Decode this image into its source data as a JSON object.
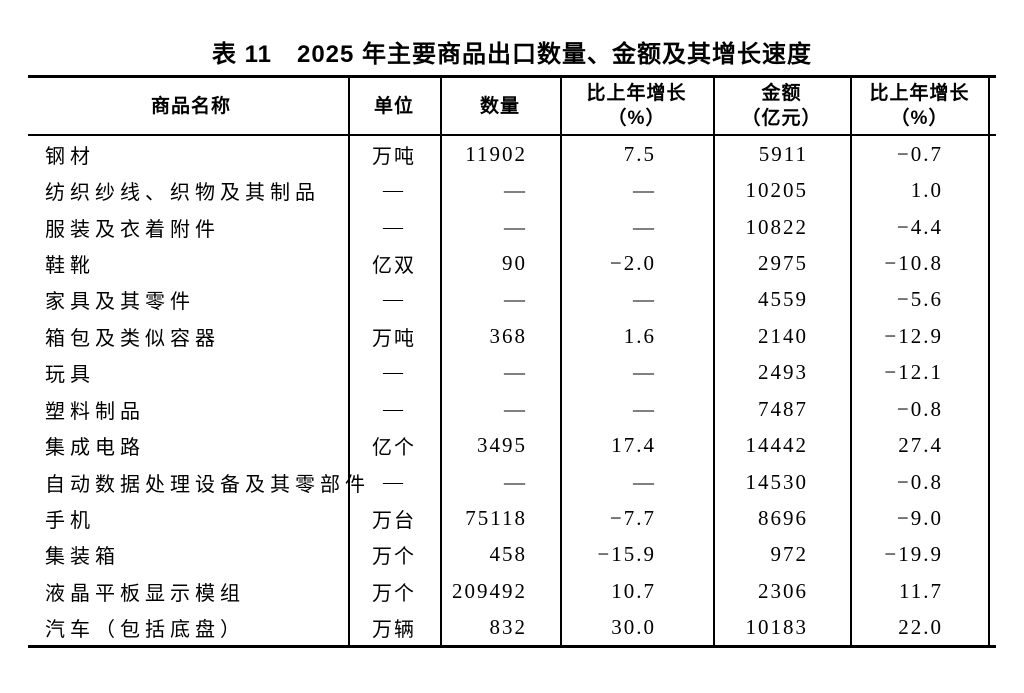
{
  "title": "表 11　2025 年主要商品出口数量、金额及其增长速度",
  "table": {
    "headers": {
      "name": "商品名称",
      "unit": "单位",
      "quantity": "数量",
      "qty_growth_line1": "比上年增长",
      "qty_growth_line2": "（%）",
      "value_line1": "金额",
      "value_line2": "（亿元）",
      "val_growth_line1": "比上年增长",
      "val_growth_line2": "（%）"
    },
    "empty_marker": "—",
    "rows": [
      {
        "name": "钢材",
        "unit": "万吨",
        "qty": "11902",
        "qty_growth": "7.5",
        "value": "5911",
        "val_growth": "−0.7"
      },
      {
        "name": "纺织纱线、织物及其制品",
        "unit": "—",
        "qty": "—",
        "qty_growth": "—",
        "value": "10205",
        "val_growth": "1.0"
      },
      {
        "name": "服装及衣着附件",
        "unit": "—",
        "qty": "—",
        "qty_growth": "—",
        "value": "10822",
        "val_growth": "−4.4"
      },
      {
        "name": "鞋靴",
        "unit": "亿双",
        "qty": "90",
        "qty_growth": "−2.0",
        "value": "2975",
        "val_growth": "−10.8"
      },
      {
        "name": "家具及其零件",
        "unit": "—",
        "qty": "—",
        "qty_growth": "—",
        "value": "4559",
        "val_growth": "−5.6"
      },
      {
        "name": "箱包及类似容器",
        "unit": "万吨",
        "qty": "368",
        "qty_growth": "1.6",
        "value": "2140",
        "val_growth": "−12.9"
      },
      {
        "name": "玩具",
        "unit": "—",
        "qty": "—",
        "qty_growth": "—",
        "value": "2493",
        "val_growth": "−12.1"
      },
      {
        "name": "塑料制品",
        "unit": "—",
        "qty": "—",
        "qty_growth": "—",
        "value": "7487",
        "val_growth": "−0.8"
      },
      {
        "name": "集成电路",
        "unit": "亿个",
        "qty": "3495",
        "qty_growth": "17.4",
        "value": "14442",
        "val_growth": "27.4"
      },
      {
        "name": "自动数据处理设备及其零部件",
        "unit": "—",
        "qty": "—",
        "qty_growth": "—",
        "value": "14530",
        "val_growth": "−0.8"
      },
      {
        "name": "手机",
        "unit": "万台",
        "qty": "75118",
        "qty_growth": "−7.7",
        "value": "8696",
        "val_growth": "−9.0"
      },
      {
        "name": "集装箱",
        "unit": "万个",
        "qty": "458",
        "qty_growth": "−15.9",
        "value": "972",
        "val_growth": "−19.9"
      },
      {
        "name": "液晶平板显示模组",
        "unit": "万个",
        "qty": "209492",
        "qty_growth": "10.7",
        "value": "2306",
        "val_growth": "11.7"
      },
      {
        "name": "汽车（包括底盘）",
        "unit": "万辆",
        "qty": "832",
        "qty_growth": "30.0",
        "value": "10183",
        "val_growth": "22.0"
      }
    ],
    "colors": {
      "rule": "#000000",
      "text": "#000000",
      "background": "#ffffff"
    }
  }
}
